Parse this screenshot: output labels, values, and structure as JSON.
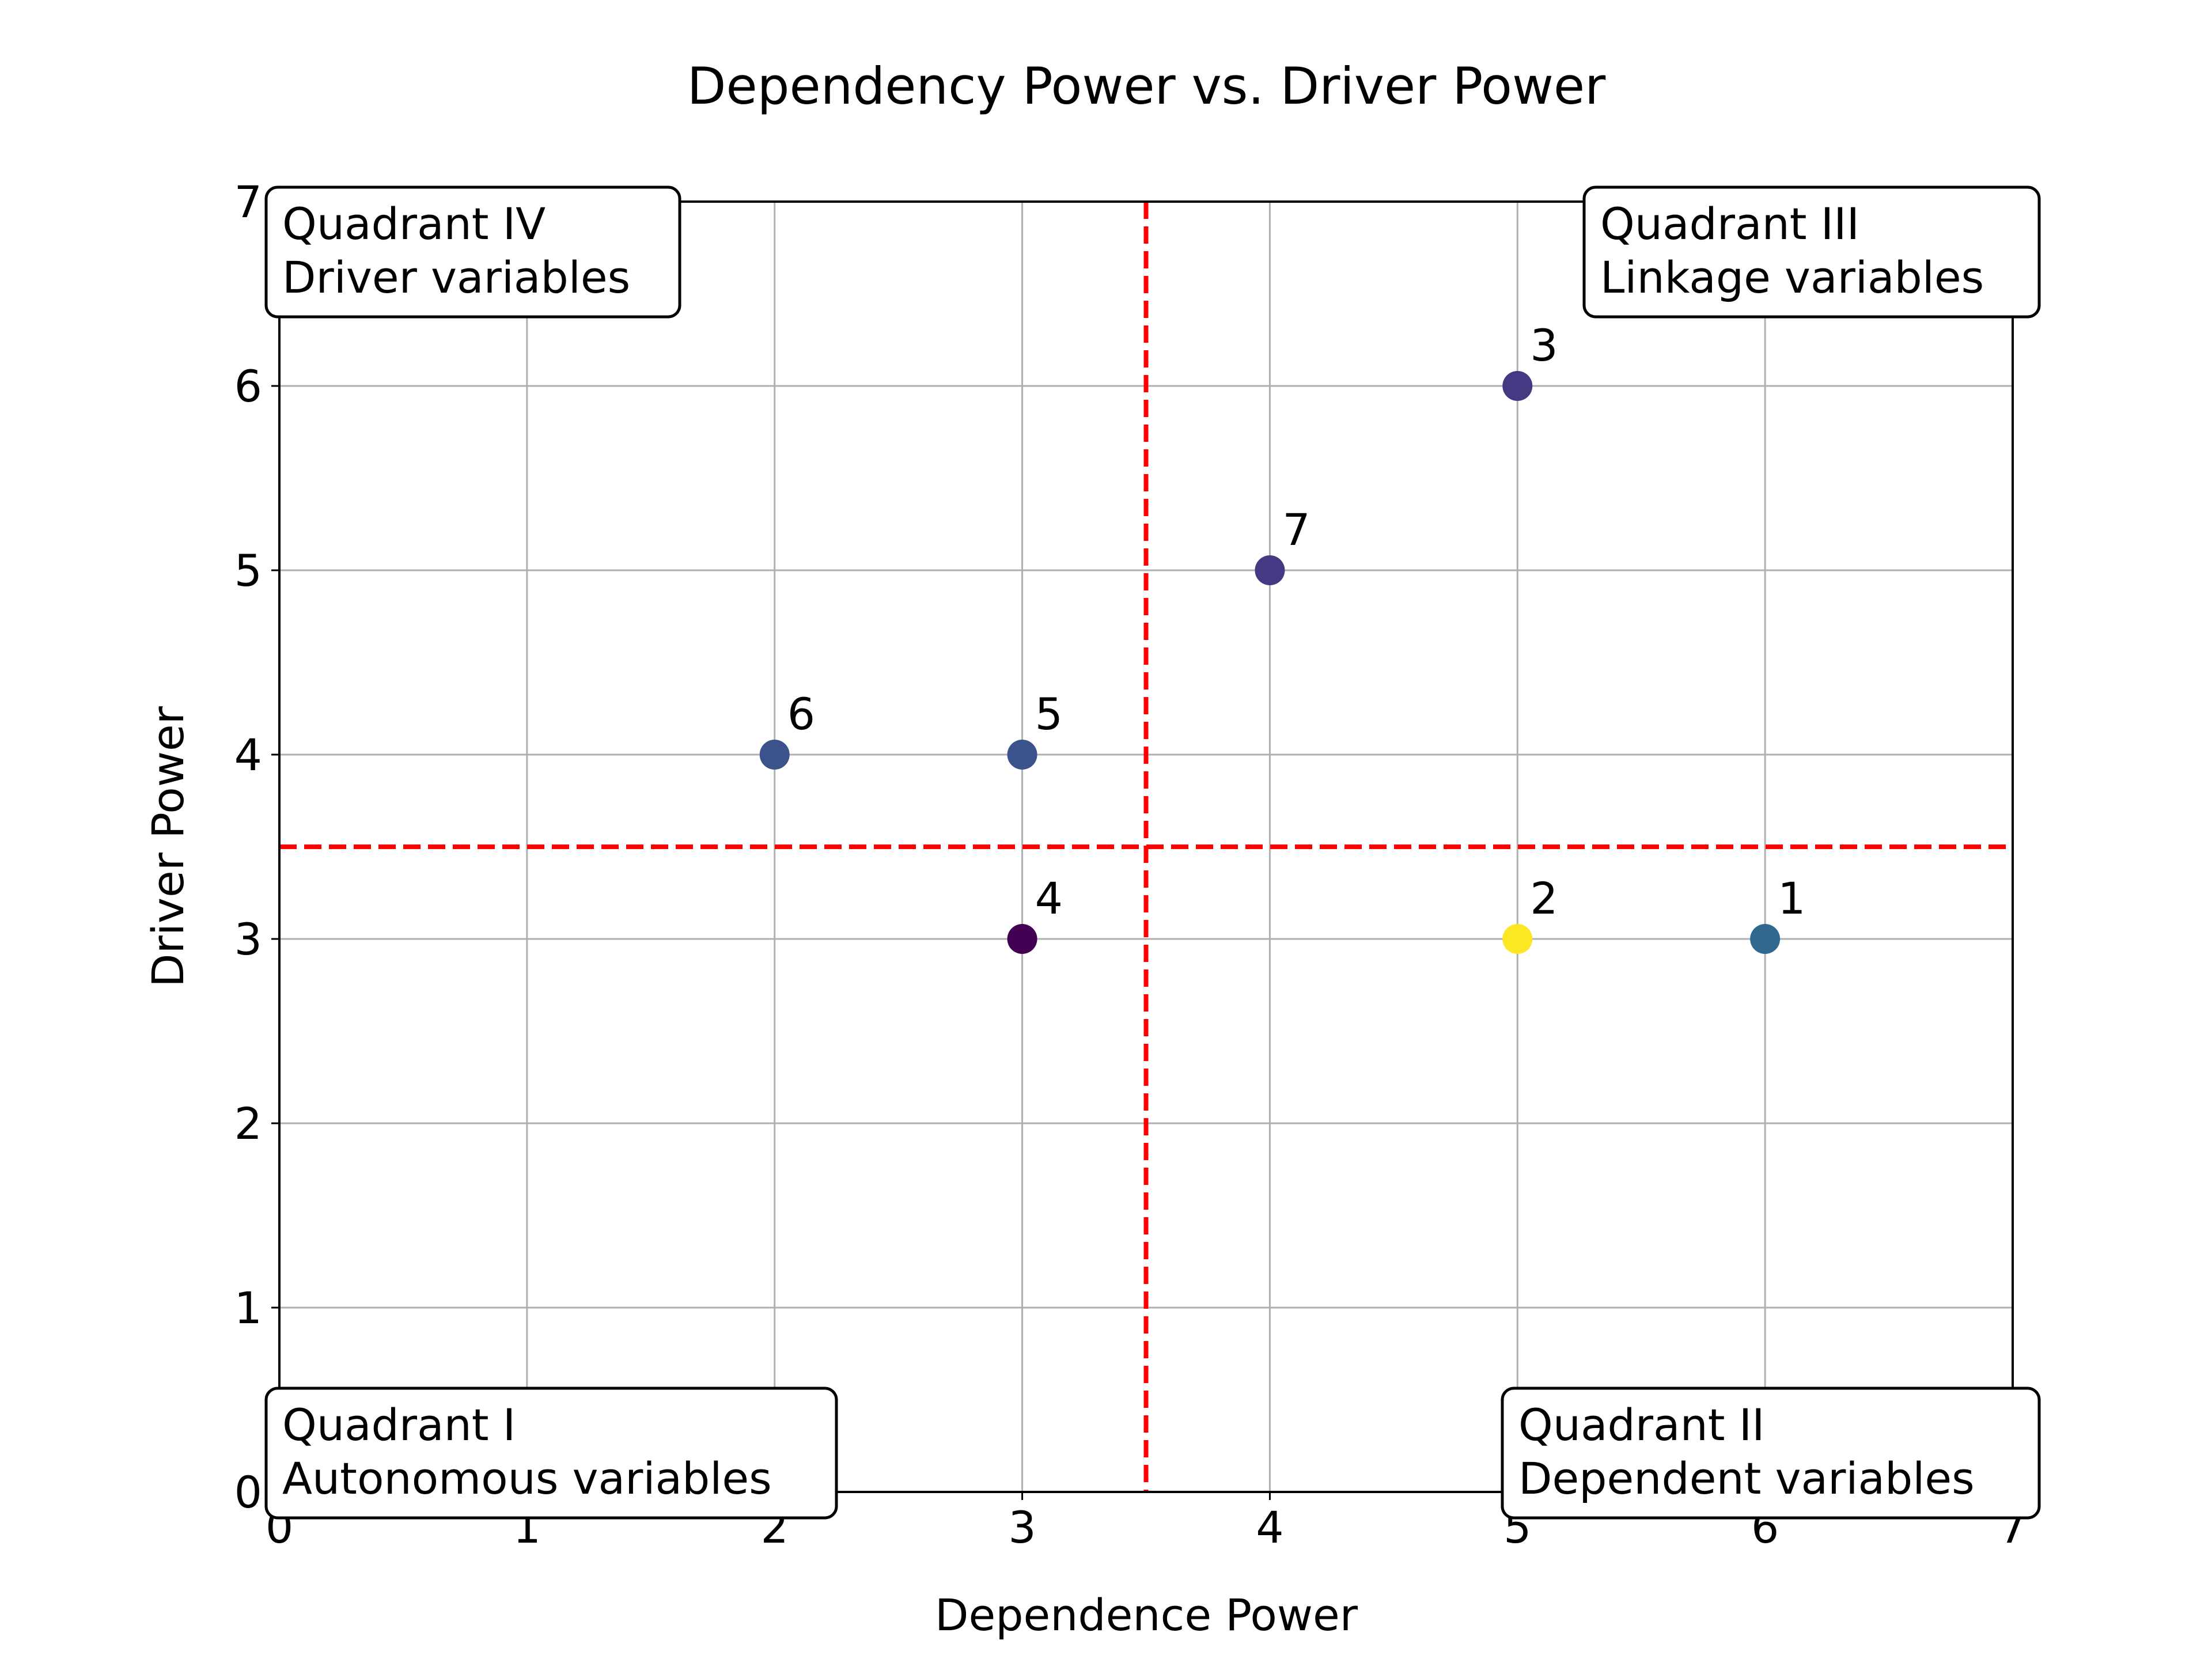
{
  "chart_data": {
    "type": "scatter",
    "title": "Dependency Power vs. Driver Power",
    "xlabel": "Dependence Power",
    "ylabel": "Driver Power",
    "xlim": [
      0,
      7
    ],
    "ylim": [
      0,
      7
    ],
    "xticks": [
      "0",
      "1",
      "2",
      "3",
      "4",
      "5",
      "6",
      "7"
    ],
    "yticks": [
      "0",
      "1",
      "2",
      "3",
      "4",
      "5",
      "6",
      "7"
    ],
    "grid": true,
    "threshold_lines": {
      "x": 3.5,
      "y": 3.5,
      "color": "#ff0000",
      "style": "dashed"
    },
    "points": [
      {
        "label": "1",
        "x": 6,
        "y": 3,
        "color": "#31688e"
      },
      {
        "label": "2",
        "x": 5,
        "y": 3,
        "color": "#fde725"
      },
      {
        "label": "3",
        "x": 5,
        "y": 6,
        "color": "#443983"
      },
      {
        "label": "4",
        "x": 3,
        "y": 3,
        "color": "#440154"
      },
      {
        "label": "5",
        "x": 3,
        "y": 4,
        "color": "#3b528b"
      },
      {
        "label": "6",
        "x": 2,
        "y": 4,
        "color": "#3b528b"
      },
      {
        "label": "7",
        "x": 4,
        "y": 5,
        "color": "#443983"
      }
    ],
    "quadrants": [
      {
        "position": "top-left",
        "line1": "Quadrant IV",
        "line2": "Driver variables"
      },
      {
        "position": "top-right",
        "line1": "Quadrant III",
        "line2": "Linkage variables"
      },
      {
        "position": "bottom-left",
        "line1": "Quadrant I",
        "line2": "Autonomous variables"
      },
      {
        "position": "bottom-right",
        "line1": "Quadrant II",
        "line2": "Dependent variables"
      }
    ]
  }
}
